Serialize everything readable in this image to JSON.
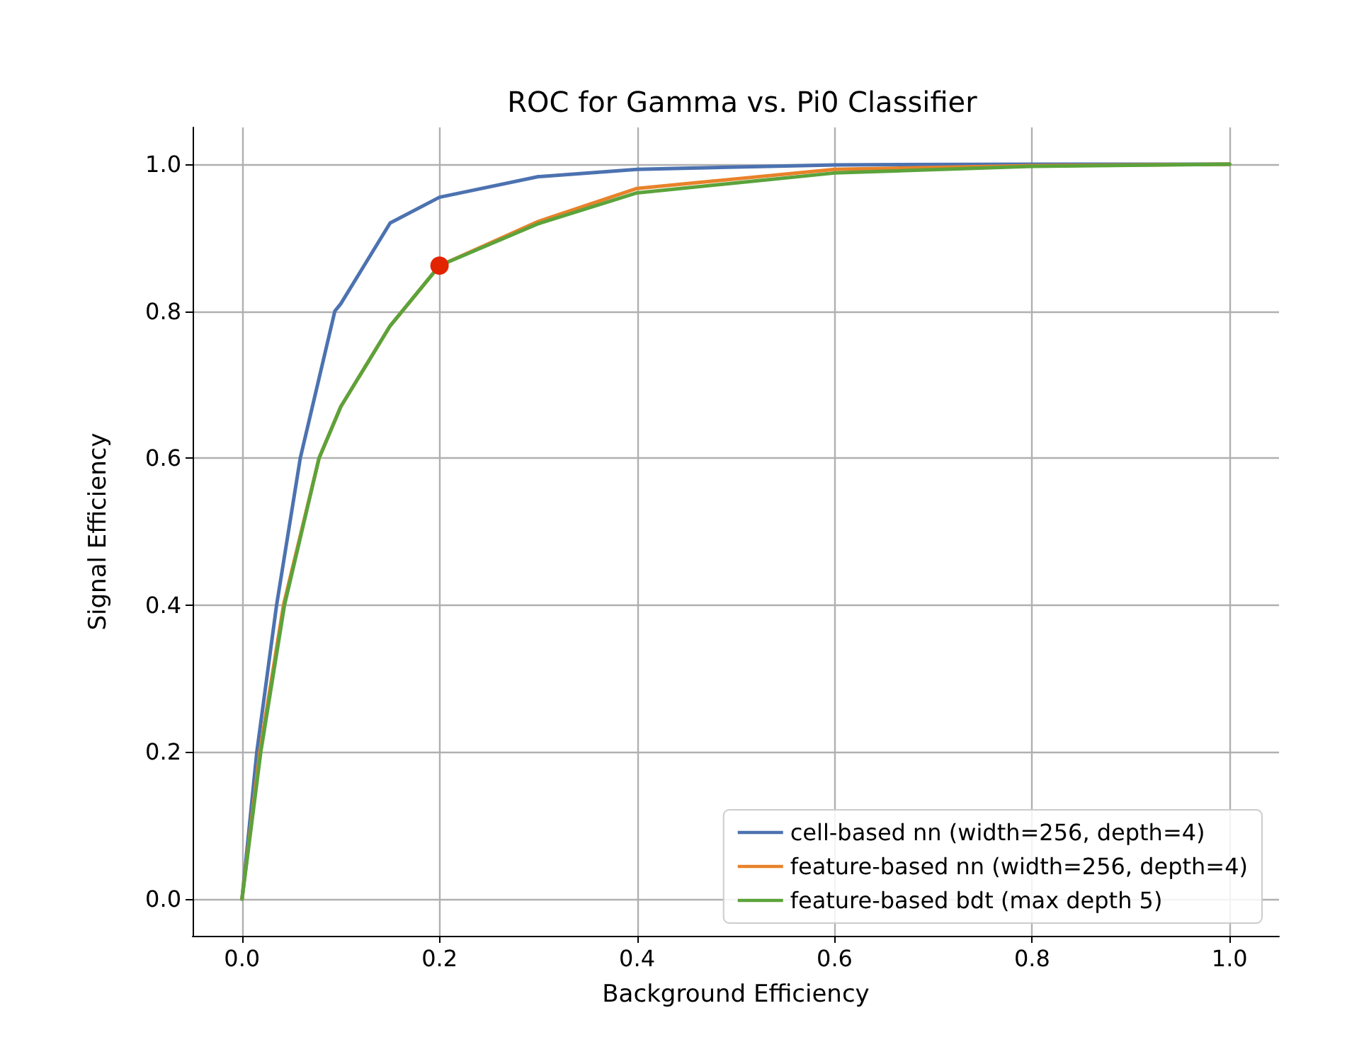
{
  "chart_data": {
    "type": "line",
    "title": "ROC for Gamma vs. Pi0 Classifier",
    "xlabel": "Background Efficiency",
    "ylabel": "Signal Efficiency",
    "xlim": [
      -0.05,
      1.05
    ],
    "ylim": [
      -0.05,
      1.05
    ],
    "xticks": [
      {
        "value": 0,
        "label": "0.0"
      },
      {
        "value": 0.2,
        "label": "0.2"
      },
      {
        "value": 0.4,
        "label": "0.4"
      },
      {
        "value": 0.6,
        "label": "0.6"
      },
      {
        "value": 0.8,
        "label": "0.8"
      },
      {
        "value": 1,
        "label": "1.0"
      }
    ],
    "yticks": [
      {
        "value": 0,
        "label": "0.0"
      },
      {
        "value": 0.2,
        "label": "0.2"
      },
      {
        "value": 0.4,
        "label": "0.4"
      },
      {
        "value": 0.6,
        "label": "0.6"
      },
      {
        "value": 0.8,
        "label": "0.8"
      },
      {
        "value": 1,
        "label": "1.0"
      }
    ],
    "grid": true,
    "legend": "bottom right",
    "marker": "none",
    "line_style": "solid",
    "series": [
      {
        "name": "cell-based nn (width=256, depth=4)",
        "color": "#4c72b0",
        "x": [
          0,
          0.015,
          0.035,
          0.059,
          0.094,
          0.1,
          0.15,
          0.2,
          0.3,
          0.4,
          0.6,
          0.8,
          1.0
        ],
        "values": [
          0,
          0.2,
          0.4,
          0.6,
          0.8,
          0.81,
          0.92,
          0.955,
          0.983,
          0.993,
          0.999,
          1.0,
          1.0
        ]
      },
      {
        "name": "feature-based nn (width=256, depth=4)",
        "color": "#e8822a",
        "x": [
          0,
          0.018,
          0.042,
          0.078,
          0.1,
          0.15,
          0.2,
          0.3,
          0.4,
          0.6,
          0.8,
          1.0
        ],
        "values": [
          0,
          0.2,
          0.4,
          0.6,
          0.67,
          0.78,
          0.862,
          0.922,
          0.967,
          0.993,
          0.998,
          1.0
        ]
      },
      {
        "name": "feature-based bdt (max depth 5)",
        "color": "#5ba33b",
        "x": [
          0,
          0.019,
          0.043,
          0.078,
          0.1,
          0.15,
          0.2,
          0.3,
          0.4,
          0.6,
          0.8,
          1.0
        ],
        "values": [
          0,
          0.2,
          0.4,
          0.6,
          0.67,
          0.78,
          0.862,
          0.919,
          0.961,
          0.988,
          0.997,
          1.0
        ]
      },
      {
        "type": "scatter",
        "color": "#e32400",
        "marker": "circle",
        "x": [
          0.2
        ],
        "values": [
          0.862
        ]
      }
    ]
  }
}
